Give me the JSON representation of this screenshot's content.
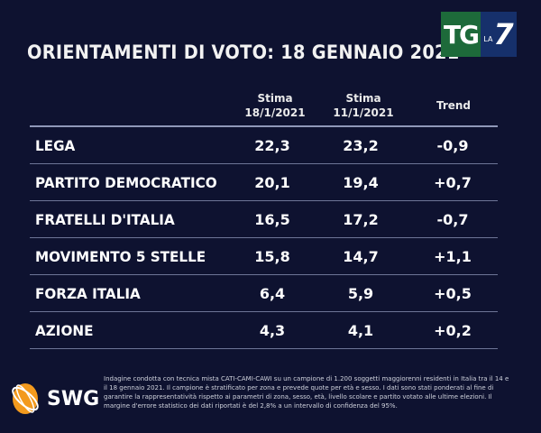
{
  "title": "ORIENTAMENTI DI VOTO: 18 GENNAIO 2021",
  "logo": {
    "tg": "TG",
    "la": "LA",
    "seven": "7"
  },
  "headers": [
    {
      "line1": "Stima",
      "line2": "18/1/2021"
    },
    {
      "line1": "Stima",
      "line2": "11/1/2021"
    },
    {
      "line1": "Trend",
      "line2": ""
    }
  ],
  "rows": [
    {
      "party": "LEGA",
      "est1": "22,3",
      "est2": "23,2",
      "trend": "-0,9"
    },
    {
      "party": "PARTITO DEMOCRATICO",
      "est1": "20,1",
      "est2": "19,4",
      "trend": "+0,7"
    },
    {
      "party": "FRATELLI D'ITALIA",
      "est1": "16,5",
      "est2": "17,2",
      "trend": "-0,7"
    },
    {
      "party": "MOVIMENTO 5 STELLE",
      "est1": "15,8",
      "est2": "14,7",
      "trend": "+1,1"
    },
    {
      "party": "FORZA ITALIA",
      "est1": "6,4",
      "est2": "5,9",
      "trend": "+0,5"
    },
    {
      "party": "AZIONE",
      "est1": "4,3",
      "est2": "4,1",
      "trend": "+0,2"
    }
  ],
  "source": {
    "brand": "SWG",
    "note": "Indagine condotta con tecnica mista CATI-CAMI-CAWI su un campione di 1.200 soggetti maggiorenni residenti in Italia tra il 14 e il 18 gennaio 2021. Il campione è stratificato per zona e prevede quote per età e sesso. I dati sono stati ponderati al fine di garantire la rappresentatività rispetto ai parametri di zona, sesso, età, livello scolare e partito votato alle ultime elezioni. Il margine d'errore statistico dei dati riportati è del 2,8% a un intervallo di confidenza del 95%."
  }
}
